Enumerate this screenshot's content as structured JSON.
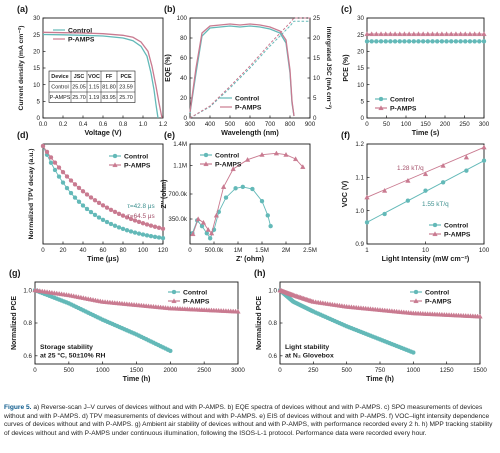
{
  "colors": {
    "control": "#63b9b8",
    "pamps": "#c97a90",
    "pamps_dark": "#a4506a",
    "frame": "#1a1a1a"
  },
  "caption": {
    "lead": "Figure 5.",
    "text": " a) Reverse-scan J–V curves of devices without and with P-AMPS. b) EQE spectra of devices without and with P-AMPS. c) SPO measurements of devices without and with P-AMPS. d) TPV measurements of devices without and with P-AMPS. e) EIS of devices without and with P-AMPS. f) VOC–light intensity dependence curves of devices without and with P-AMPS. g) Ambient air stability of devices without and with P-AMPS, with performance recorded every 2 h. h) MPP tracking stability of devices without and with P-AMPS under continuous illumination, following the ISOS-L-1 protocol. Performance data were recorded every hour."
  },
  "chart_data": [
    {
      "id": "a",
      "type": "line",
      "panel_label": "(a)",
      "xlabel": "Voltage (V)",
      "ylabel": "Current density (mA cm⁻²)",
      "xlim": [
        0,
        1.2
      ],
      "ylim": [
        0,
        30
      ],
      "xticks": [
        "0.0",
        "0.2",
        "0.4",
        "0.6",
        "0.8",
        "1.0",
        "1.2"
      ],
      "yticks": [
        "0",
        "5",
        "10",
        "15",
        "20",
        "25",
        "30"
      ],
      "legend": [
        "Control",
        "P-AMPS"
      ],
      "series": [
        {
          "name": "Control",
          "x": [
            0,
            0.2,
            0.4,
            0.6,
            0.8,
            0.9,
            0.98,
            1.04,
            1.08,
            1.11,
            1.13,
            1.15
          ],
          "y": [
            25.05,
            24.95,
            24.8,
            24.6,
            24.0,
            23.2,
            21.5,
            18.5,
            13.5,
            8.5,
            4.0,
            0
          ]
        },
        {
          "name": "P-AMPS",
          "x": [
            0,
            0.2,
            0.4,
            0.6,
            0.8,
            0.9,
            0.98,
            1.05,
            1.09,
            1.13,
            1.16,
            1.19
          ],
          "y": [
            25.7,
            25.6,
            25.5,
            25.3,
            24.8,
            24.2,
            22.8,
            20.0,
            15.5,
            9.5,
            4.5,
            0
          ]
        }
      ],
      "table": {
        "headers": [
          "Device",
          "JSC",
          "VOC",
          "FF",
          "PCE"
        ],
        "rows": [
          [
            "Control",
            "25.05",
            "1.15",
            "81.80",
            "23.59"
          ],
          [
            "P-AMPS",
            "25.70",
            "1.19",
            "83.95",
            "25.70"
          ]
        ]
      }
    },
    {
      "id": "b",
      "type": "line",
      "panel_label": "(b)",
      "xlabel": "Wavelength (nm)",
      "ylabel": "EQE (%)",
      "ylabel_right": "Intergrated JSC (mA cm⁻²)",
      "xlim": [
        300,
        900
      ],
      "ylim": [
        0,
        100
      ],
      "ylim_right": [
        0,
        25
      ],
      "xticks": [
        "300",
        "400",
        "500",
        "600",
        "700",
        "800",
        "900"
      ],
      "yticks": [
        "0",
        "20",
        "40",
        "60",
        "80",
        "100"
      ],
      "yticks_right": [
        "0",
        "5",
        "10",
        "15",
        "20",
        "25"
      ],
      "legend": [
        "Control",
        "P-AMPS"
      ],
      "series": [
        {
          "name": "Control",
          "x": [
            300,
            330,
            360,
            400,
            450,
            500,
            550,
            600,
            650,
            700,
            750,
            780,
            800,
            810,
            820
          ],
          "y": [
            5,
            45,
            82,
            90,
            91,
            92,
            91,
            92,
            91,
            89,
            85,
            75,
            45,
            15,
            2
          ]
        },
        {
          "name": "P-AMPS",
          "x": [
            300,
            330,
            360,
            400,
            450,
            500,
            550,
            600,
            650,
            700,
            750,
            780,
            800,
            810,
            820
          ],
          "y": [
            6,
            50,
            85,
            92,
            93,
            94,
            93,
            94,
            93,
            91,
            87,
            78,
            48,
            17,
            2
          ]
        },
        {
          "name": "Control integrated JSC",
          "x": [
            300,
            400,
            500,
            600,
            700,
            800,
            820,
            900
          ],
          "y": [
            0,
            2.8,
            7.5,
            12.5,
            18,
            23,
            24.2,
            24.2
          ]
        },
        {
          "name": "P-AMPS integrated JSC",
          "x": [
            300,
            400,
            500,
            600,
            700,
            800,
            820,
            900
          ],
          "y": [
            0,
            3.0,
            7.9,
            13.0,
            18.6,
            23.8,
            25.0,
            25.0
          ]
        }
      ]
    },
    {
      "id": "c",
      "type": "line",
      "panel_label": "(c)",
      "xlabel": "Time (s)",
      "ylabel": "PCE (%)",
      "xlim": [
        0,
        300
      ],
      "ylim": [
        0,
        30
      ],
      "xticks": [
        "0",
        "50",
        "100",
        "150",
        "200",
        "250",
        "300"
      ],
      "yticks": [
        "0",
        "5",
        "10",
        "15",
        "20",
        "25",
        "30"
      ],
      "legend": [
        "Control",
        "P-AMPS"
      ],
      "series": [
        {
          "name": "Control",
          "x": [
            0,
            300
          ],
          "y": [
            23.0,
            23.0
          ]
        },
        {
          "name": "P-AMPS",
          "x": [
            0,
            300
          ],
          "y": [
            25.2,
            25.2
          ]
        }
      ]
    },
    {
      "id": "d",
      "type": "line",
      "panel_label": "(d)",
      "xlabel": "Time (μs)",
      "ylabel": "Normalized TPV decay (a.u.)",
      "xlim": [
        0,
        120
      ],
      "ylim": [
        0,
        1
      ],
      "xticks": [
        "0",
        "20",
        "40",
        "60",
        "80",
        "100",
        "120"
      ],
      "legend": [
        "Control",
        "P-AMPS"
      ],
      "annotations": [
        "τ=42.8 μs",
        "τ=64.5 μs"
      ],
      "series": [
        {
          "name": "Control",
          "tau": 42.8
        },
        {
          "name": "P-AMPS",
          "tau": 64.5
        }
      ]
    },
    {
      "id": "e",
      "type": "scatter",
      "panel_label": "(e)",
      "xlabel": "Z' (ohm)",
      "ylabel": "Z'' (ohm)",
      "xlim": [
        0,
        2500000
      ],
      "ylim": [
        0,
        1400000
      ],
      "xticks": [
        "0",
        "500.0k",
        "1M",
        "1.5M",
        "2M",
        "2.5M"
      ],
      "yticks": [
        "350.0k",
        "700.0k",
        "1.1M",
        "1.4M"
      ],
      "legend": [
        "Control",
        "P-AMPS"
      ],
      "series": [
        {
          "name": "Control",
          "x": [
            50000,
            150000,
            250000,
            350000,
            420000,
            500000,
            600000,
            750000,
            950000,
            1100000,
            1300000,
            1500000,
            1620000,
            1680000
          ],
          "y": [
            150000,
            330000,
            250000,
            150000,
            80000,
            200000,
            450000,
            650000,
            780000,
            800000,
            770000,
            600000,
            400000,
            250000
          ]
        },
        {
          "name": "P-AMPS",
          "x": [
            60000,
            170000,
            280000,
            380000,
            450000,
            550000,
            700000,
            900000,
            1200000,
            1500000,
            1800000,
            2000000,
            2200000,
            2350000
          ],
          "y": [
            140000,
            350000,
            300000,
            200000,
            150000,
            400000,
            800000,
            1050000,
            1180000,
            1250000,
            1270000,
            1250000,
            1190000,
            1080000
          ]
        }
      ]
    },
    {
      "id": "f",
      "type": "scatter",
      "panel_label": "(f)",
      "xlabel": "Light Intensity (mW cm⁻²)",
      "ylabel": "VOC (V)",
      "xscale": "log",
      "xlim": [
        1,
        100
      ],
      "ylim": [
        0.9,
        1.2
      ],
      "xticks": [
        "1",
        "10",
        "100"
      ],
      "yticks": [
        "0.9",
        "1.0",
        "1.1",
        "1.2"
      ],
      "legend": [
        "Control",
        "P-AMPS"
      ],
      "annotations": [
        "1.28 kT/q",
        "1.55 kT/q"
      ],
      "series": [
        {
          "name": "Control",
          "x": [
            1,
            2,
            5,
            10,
            20,
            50,
            100
          ],
          "y": [
            0.965,
            0.99,
            1.03,
            1.06,
            1.085,
            1.12,
            1.15
          ]
        },
        {
          "name": "P-AMPS",
          "x": [
            1,
            2,
            5,
            10,
            20,
            50,
            100
          ],
          "y": [
            1.04,
            1.06,
            1.09,
            1.11,
            1.135,
            1.16,
            1.19
          ]
        }
      ]
    },
    {
      "id": "g",
      "type": "scatter",
      "panel_label": "(g)",
      "xlabel": "Time (h)",
      "ylabel": "Normalized PCE",
      "xlim": [
        0,
        3000
      ],
      "ylim": [
        0.55,
        1.05
      ],
      "xticks": [
        "0",
        "500",
        "1000",
        "1500",
        "2000",
        "2500",
        "3000"
      ],
      "yticks": [
        "0.6",
        "0.8",
        "1.0"
      ],
      "legend": [
        "Control",
        "P-AMPS"
      ],
      "annotation": "Storage stability at 25 °C, 50±10% RH",
      "series": [
        {
          "name": "Control",
          "x": [
            0,
            500,
            1000,
            1500,
            2000
          ],
          "y": [
            1.0,
            0.92,
            0.82,
            0.73,
            0.63
          ]
        },
        {
          "name": "P-AMPS",
          "x": [
            0,
            500,
            1000,
            1500,
            2000,
            2500,
            3000
          ],
          "y": [
            1.0,
            0.97,
            0.93,
            0.91,
            0.89,
            0.88,
            0.87
          ]
        }
      ]
    },
    {
      "id": "h",
      "type": "scatter",
      "panel_label": "(h)",
      "xlabel": "Time (h)",
      "ylabel": "Normalized PCE",
      "xlim": [
        0,
        1500
      ],
      "ylim": [
        0.55,
        1.05
      ],
      "xticks": [
        "0",
        "250",
        "500",
        "750",
        "1000",
        "1250",
        "1500"
      ],
      "yticks": [
        "0.6",
        "0.8",
        "1.0"
      ],
      "legend": [
        "Control",
        "P-AMPS"
      ],
      "annotation": "Light stability at N₂ Glovebox",
      "series": [
        {
          "name": "Control",
          "x": [
            0,
            100,
            250,
            500,
            750,
            1000
          ],
          "y": [
            1.0,
            0.93,
            0.87,
            0.78,
            0.7,
            0.62
          ]
        },
        {
          "name": "P-AMPS",
          "x": [
            0,
            100,
            250,
            500,
            750,
            1000,
            1250,
            1500
          ],
          "y": [
            1.0,
            0.97,
            0.93,
            0.9,
            0.88,
            0.86,
            0.85,
            0.84
          ]
        }
      ]
    }
  ]
}
